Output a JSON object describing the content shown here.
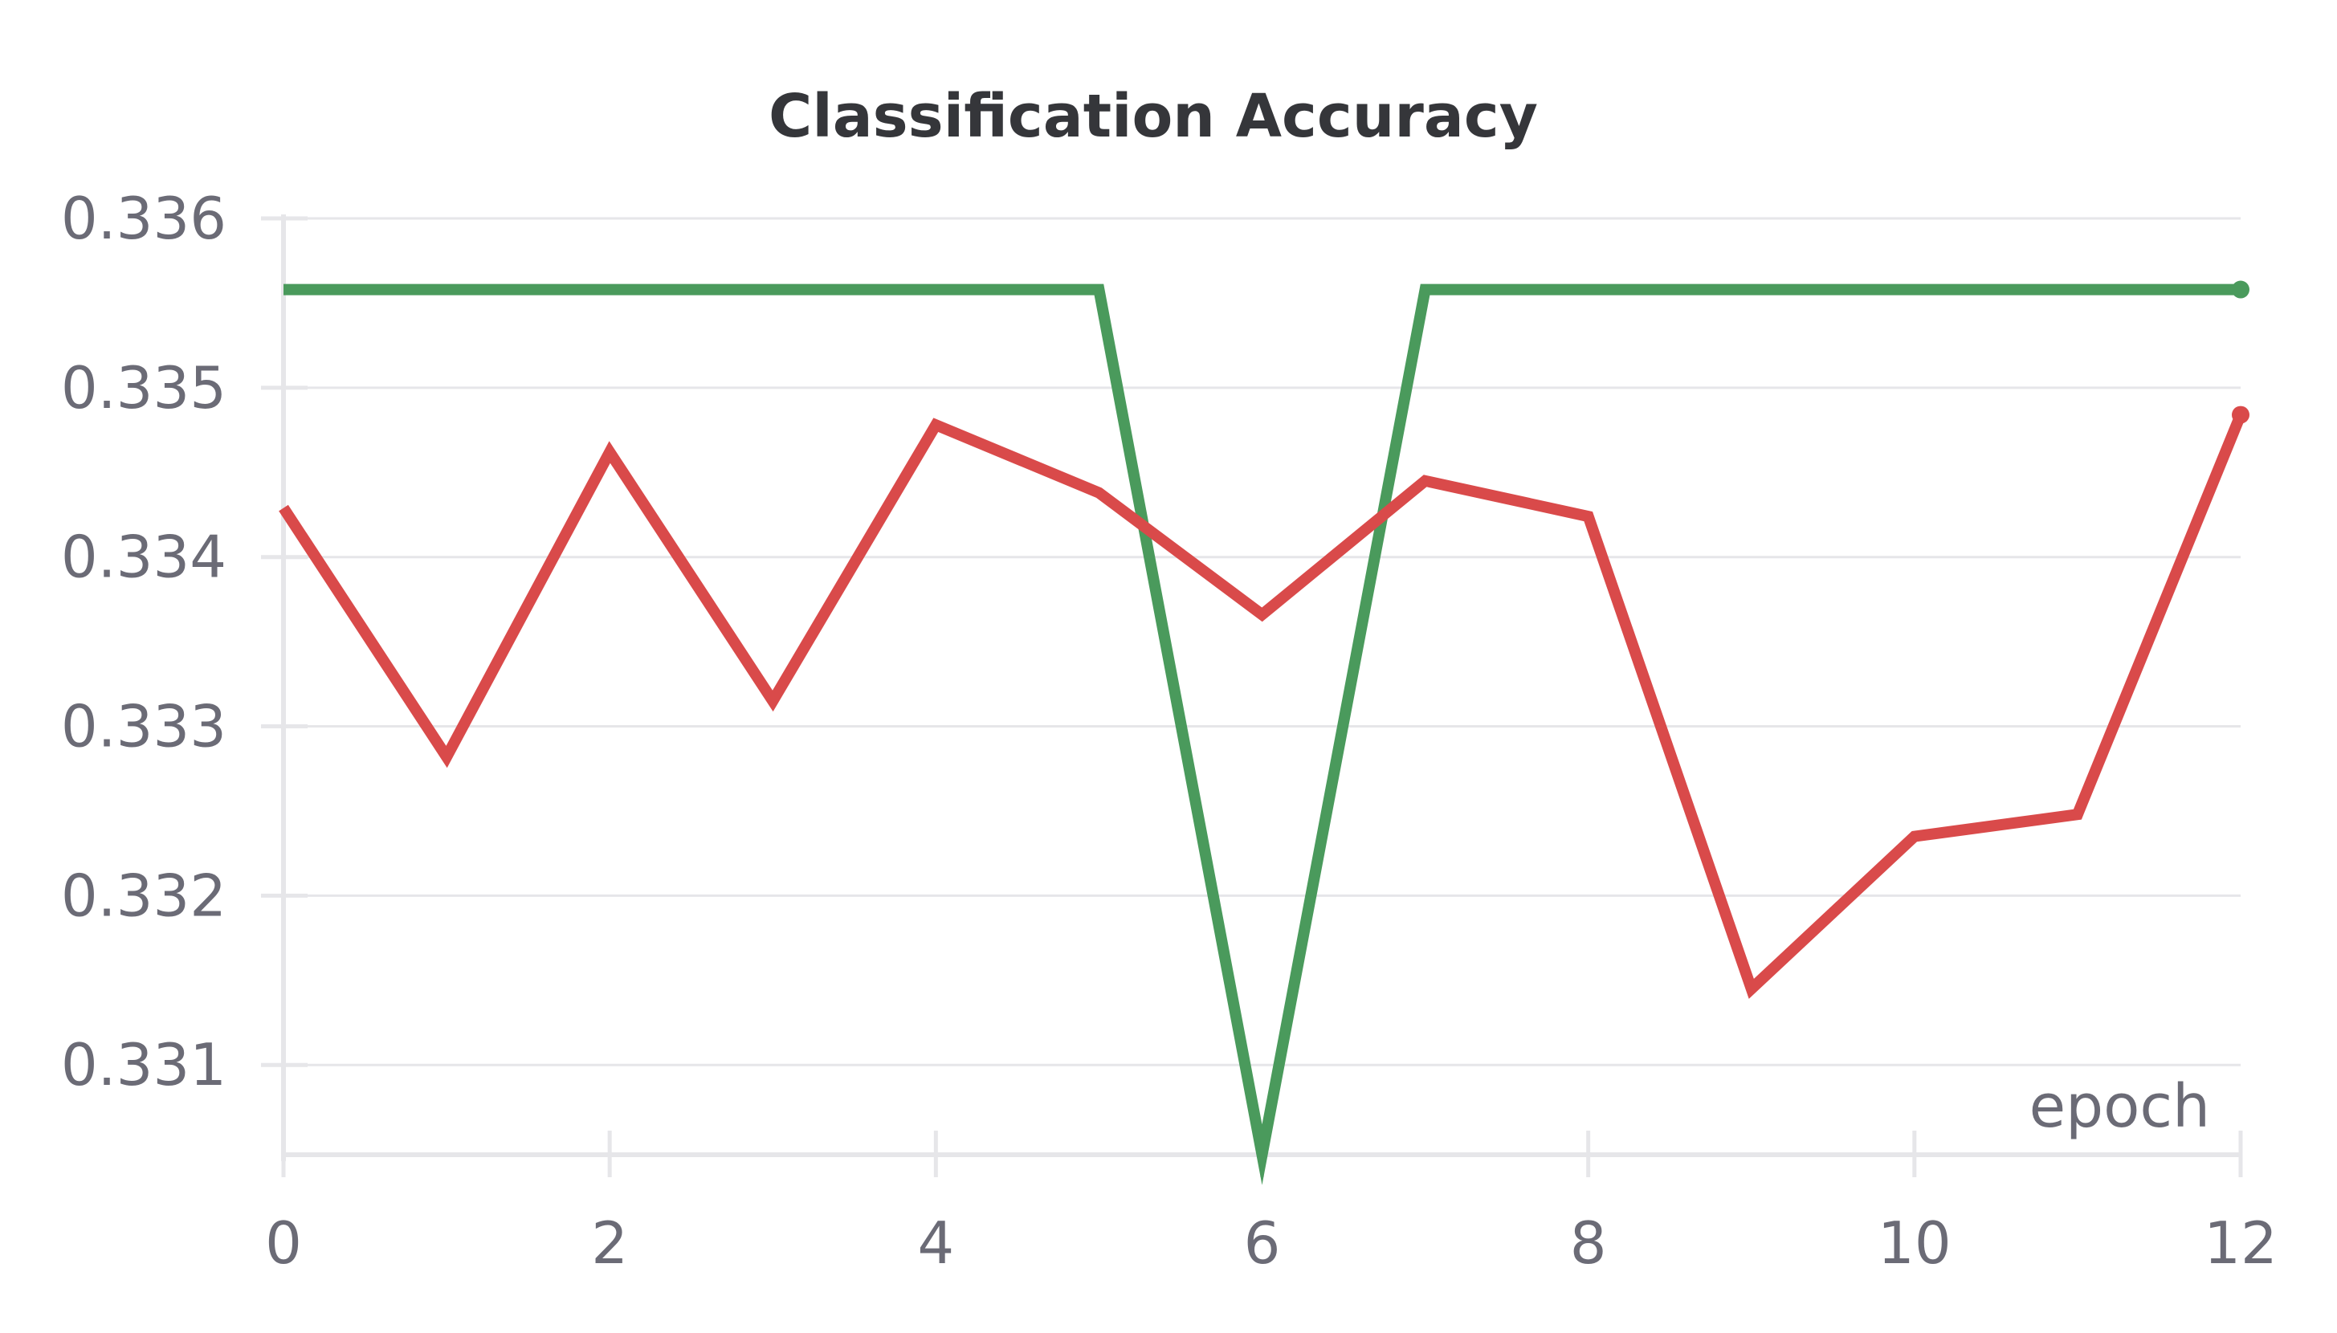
{
  "chart_data": {
    "type": "line",
    "title": "Classification Accuracy",
    "xlabel": "epoch",
    "ylabel": "",
    "x": [
      0,
      1,
      2,
      3,
      4,
      5,
      6,
      7,
      8,
      9,
      10,
      11,
      12
    ],
    "xlim": [
      0,
      12
    ],
    "ylim": [
      0.33047,
      0.336
    ],
    "xticks": [
      0,
      2,
      4,
      6,
      8,
      10,
      12
    ],
    "xtick_labels": [
      "0",
      "2",
      "4",
      "6",
      "8",
      "10",
      "12"
    ],
    "yticks": [
      0.331,
      0.332,
      0.333,
      0.334,
      0.335,
      0.336
    ],
    "ytick_labels": [
      "0.331",
      "0.332",
      "0.333",
      "0.334",
      "0.335",
      "0.336"
    ],
    "grid": true,
    "legend": "none",
    "series": [
      {
        "color": "#4a9a5c",
        "values": [
          0.33558,
          0.33558,
          0.33558,
          0.33558,
          0.33558,
          0.33558,
          0.33047,
          0.33558,
          0.33558,
          0.33558,
          0.33558,
          0.33558,
          0.33558
        ]
      },
      {
        "color": "#d94a4a",
        "values": [
          0.33429,
          0.33282,
          0.33462,
          0.33315,
          0.33478,
          0.33438,
          0.33366,
          0.33445,
          0.33424,
          0.33145,
          0.33235,
          0.33248,
          0.33484
        ]
      }
    ]
  }
}
